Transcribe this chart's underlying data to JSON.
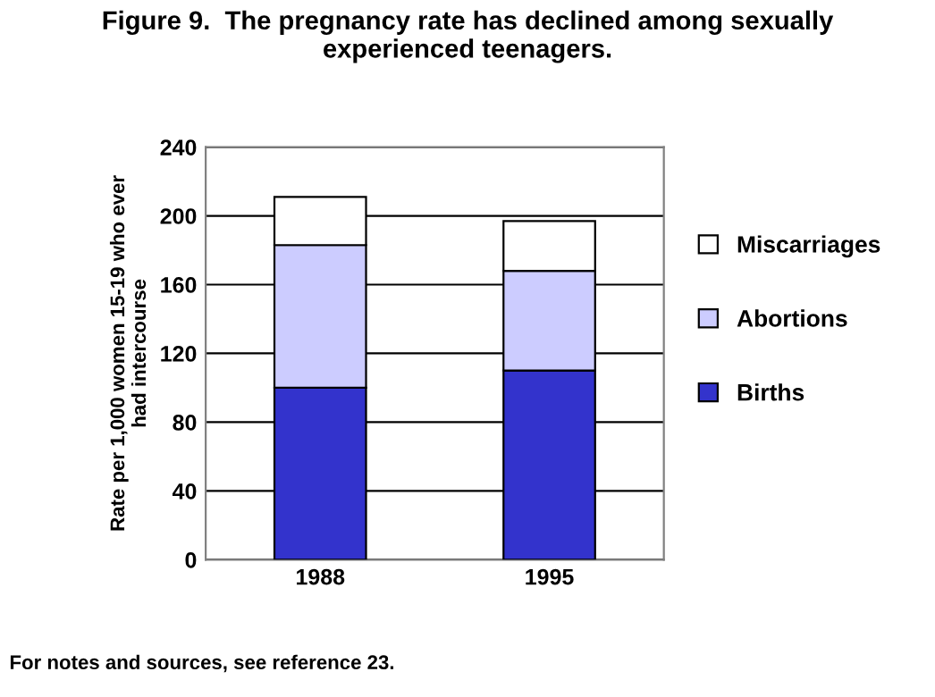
{
  "chart_data": {
    "type": "bar",
    "stacked": true,
    "title": "Figure 9.  The pregnancy rate has declined among sexually\nexperienced teenagers.",
    "ylabel": "Rate per 1,000 women 15-19 who ever\nhad intercourse",
    "categories": [
      "1988",
      "1995"
    ],
    "series": [
      {
        "name": "Births",
        "color": "#3333cc",
        "values": [
          100,
          110
        ]
      },
      {
        "name": "Abortions",
        "color": "#ccccff",
        "values": [
          83,
          58
        ]
      },
      {
        "name": "Miscarriages",
        "color": "#ffffff",
        "values": [
          28,
          29
        ]
      }
    ],
    "ylim": [
      0,
      240
    ],
    "yticks": [
      0,
      40,
      80,
      120,
      160,
      200,
      240
    ],
    "grid": "y",
    "legend": "right",
    "annotations": [
      "For notes and sources, see reference 23."
    ]
  }
}
